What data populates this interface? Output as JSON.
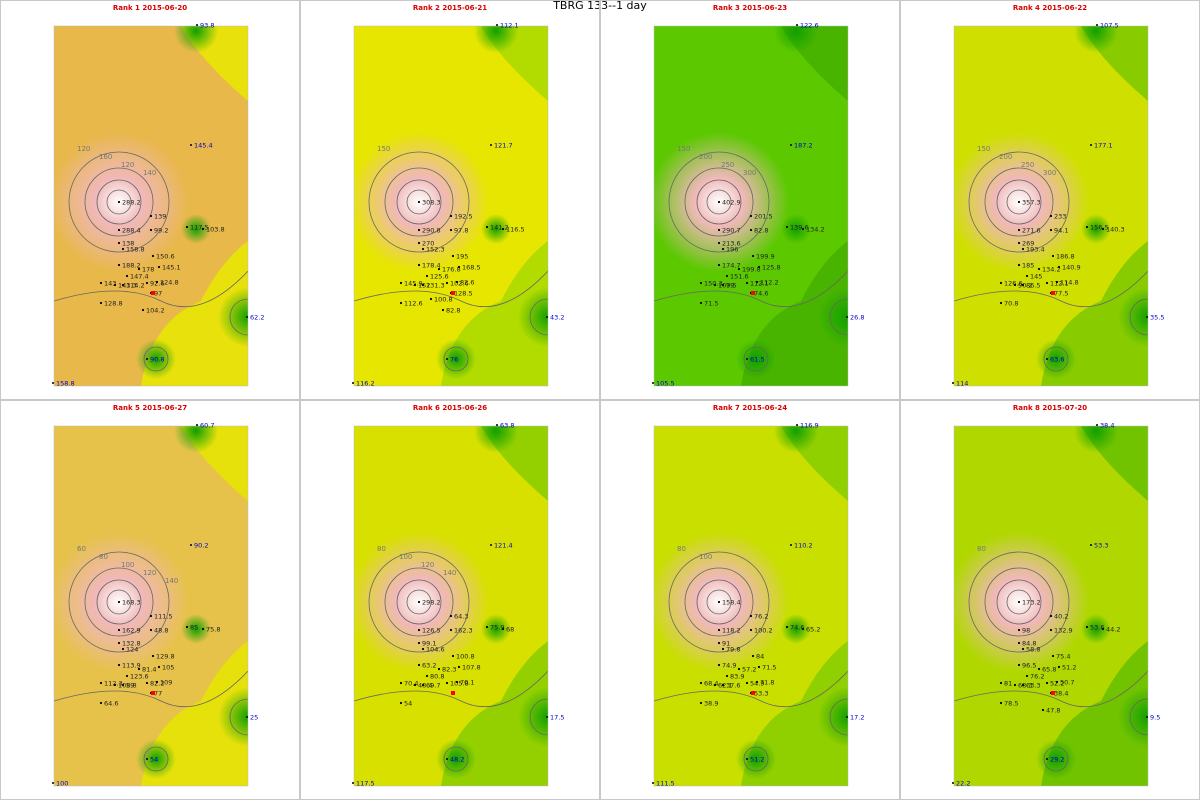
{
  "title": "TBRG 133--1 day",
  "chart_data": {
    "type": "heatmap",
    "panels": [
      {
        "label": "Rank 1 2015-06-20",
        "edge_values": [
          "93.8",
          "145.4",
          "62.2",
          "90.8",
          "158.8"
        ],
        "station_values": [
          "288.2",
          "288.4",
          "99.2",
          "139",
          "117.5",
          "103.8",
          "138",
          "158.8",
          "150.6",
          "188.2",
          "178",
          "145.1",
          "147.4",
          "143",
          "143.3",
          "114.2",
          "92.6",
          "124.8",
          "128.8",
          "97",
          "104.2"
        ],
        "contours": [
          "120",
          "160",
          "120",
          "140"
        ]
      },
      {
        "label": "Rank 2 2015-06-21",
        "edge_values": [
          "112.1",
          "121.7",
          "43.2",
          "76",
          "116.2"
        ],
        "station_values": [
          "308.3",
          "290.8",
          "97.8",
          "192.5",
          "141.2",
          "116.5",
          "270",
          "152.3",
          "195",
          "178.4",
          "176.8",
          "168.5",
          "125.6",
          "145.9",
          "152",
          "131.3",
          "102.6",
          "82.6",
          "112.6",
          "128.5",
          "82.8",
          "100.8"
        ],
        "contours": [
          "150"
        ]
      },
      {
        "label": "Rank 3 2015-06-23",
        "edge_values": [
          "122.6",
          "187.2",
          "26.8",
          "61.5",
          "105.5"
        ],
        "station_values": [
          "402.9",
          "290.7",
          "82.8",
          "201.5",
          "139.6",
          "134.2",
          "213.6",
          "196",
          "199.9",
          "174.7",
          "199.8",
          "125.8",
          "151.6",
          "150.3",
          "109.5",
          "79",
          "112.1",
          "112.2",
          "71.5",
          "74.6"
        ],
        "contours": [
          "150",
          "200",
          "250",
          "300"
        ]
      },
      {
        "label": "Rank 4 2015-06-22",
        "edge_values": [
          "107.5",
          "177.1",
          "35.5",
          "63.6",
          "114"
        ],
        "station_values": [
          "357.3",
          "271.6",
          "94.1",
          "233",
          "156.5",
          "140.3",
          "269",
          "193.4",
          "186.8",
          "185",
          "134.2",
          "140.9",
          "145",
          "126.6",
          "90.2",
          "86.5",
          "112.1",
          "114.8",
          "70.8",
          "77.5"
        ],
        "contours": [
          "150",
          "200",
          "250",
          "300"
        ]
      },
      {
        "label": "Rank 5 2015-06-27",
        "edge_values": [
          "60.7",
          "90.2",
          "25",
          "54",
          "100"
        ],
        "station_values": [
          "168.3",
          "162.9",
          "48.8",
          "111.5",
          "85",
          "75.8",
          "132.8",
          "124",
          "129.8",
          "113.9",
          "81.4",
          "105",
          "123.6",
          "112.3",
          "108.8",
          "59",
          "82.2",
          "109",
          "64.6",
          "77"
        ],
        "contours": [
          "60",
          "80",
          "100",
          "120",
          "140"
        ]
      },
      {
        "label": "Rank 6 2015-06-26",
        "edge_values": [
          "63.8",
          "121.4",
          "17.5",
          "48.2",
          "117.5"
        ],
        "station_values": [
          "298.2",
          "126.5",
          "162.3",
          "64.3",
          "75.9",
          "68",
          "99.1",
          "104.6",
          "100.8",
          "63.2",
          "82.3",
          "107.8",
          "80.8",
          "70.4",
          "48.4",
          "69.7",
          "105.8",
          "70.1",
          "54"
        ],
        "contours": [
          "80",
          "100",
          "120",
          "140"
        ]
      },
      {
        "label": "Rank 7 2015-06-24",
        "edge_values": [
          "116.9",
          "110.2",
          "17.2",
          "51.2",
          "111.5"
        ],
        "station_values": [
          "158.4",
          "118.2",
          "100.2",
          "76.2",
          "74.6",
          "65.2",
          "91",
          "79.8",
          "84",
          "74.9",
          "57.2",
          "71.5",
          "83.9",
          "68.4",
          "62.1",
          "37.6",
          "54.9",
          "71.8",
          "38.9",
          "53.3"
        ],
        "contours": [
          "80",
          "100"
        ]
      },
      {
        "label": "Rank 8 2015-07-20",
        "edge_values": [
          "38.4",
          "53.3",
          "9.5",
          "29.2",
          "22.2"
        ],
        "station_values": [
          "173.2",
          "98",
          "132.9",
          "40.2",
          "53.6",
          "44.2",
          "84.8",
          "58.8",
          "75.4",
          "96.5",
          "65.8",
          "51.2",
          "76.2",
          "81",
          "68.3",
          "63.3",
          "52.2",
          "50.7",
          "78.5",
          "38.4",
          "47.8"
        ],
        "contours": [
          "80"
        ]
      }
    ],
    "colors": {
      "high": "#f0b8b8",
      "mid_high": "#e9b84a",
      "mid": "#e8e800",
      "mid_low": "#9bd000",
      "low": "#44b800",
      "contour": "#666666",
      "title": "#d80000",
      "edge_label": "#0000cc"
    }
  }
}
